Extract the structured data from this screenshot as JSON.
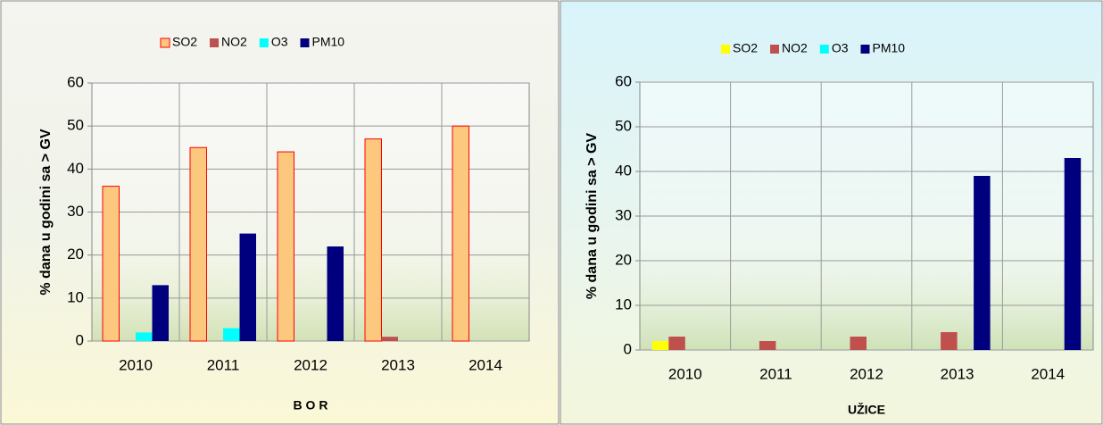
{
  "chart_data": [
    {
      "type": "bar",
      "xlabel": "B O R",
      "ylabel": "% dana u godini sa  > GV",
      "categories": [
        "2010",
        "2011",
        "2012",
        "2013",
        "2014"
      ],
      "series": [
        {
          "name": "SO2",
          "color": "#fcc87e",
          "edgecolor": "#ff0000",
          "values": [
            36,
            45,
            44,
            47,
            50
          ]
        },
        {
          "name": "NO2",
          "color": "#c0504d",
          "values": [
            0,
            0,
            0,
            1,
            0
          ]
        },
        {
          "name": "O3",
          "color": "#00ffff",
          "values": [
            2,
            3,
            0,
            0,
            0
          ]
        },
        {
          "name": "PM10",
          "color": "#00007f",
          "values": [
            13,
            25,
            22,
            0,
            0
          ]
        }
      ],
      "ylim": [
        0,
        60
      ],
      "yticks": [
        0,
        10,
        20,
        30,
        40,
        50,
        60
      ],
      "grid": true,
      "legend": "top"
    },
    {
      "type": "bar",
      "xlabel": "UŽICE",
      "ylabel": "% dana u godini sa  > GV",
      "categories": [
        "2010",
        "2011",
        "2012",
        "2013",
        "2014"
      ],
      "series": [
        {
          "name": "SO2",
          "color": "#ffff00",
          "values": [
            2,
            0,
            0,
            0,
            0
          ]
        },
        {
          "name": "NO2",
          "color": "#c0504d",
          "values": [
            3,
            2,
            3,
            4,
            0
          ]
        },
        {
          "name": "O3",
          "color": "#00ffff",
          "values": [
            0,
            0,
            0,
            0,
            0
          ]
        },
        {
          "name": "PM10",
          "color": "#00007f",
          "values": [
            0,
            0,
            0,
            39,
            43
          ]
        }
      ],
      "ylim": [
        0,
        60
      ],
      "yticks": [
        0,
        10,
        20,
        30,
        40,
        50,
        60
      ],
      "grid": true,
      "legend": "top"
    }
  ]
}
